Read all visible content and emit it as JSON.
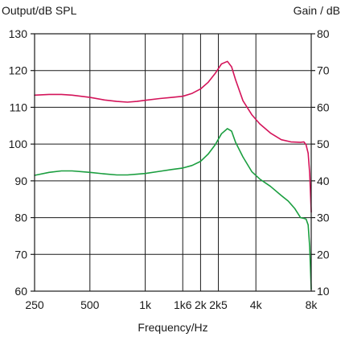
{
  "chart_data": {
    "type": "line",
    "title": "",
    "xlabel": "Frequency/Hz",
    "ylabel_left": "Output/dB SPL",
    "ylabel_right": "Gain / dB",
    "x_scale": "log",
    "xlim": [
      250,
      8000
    ],
    "ylim_left": [
      60,
      130
    ],
    "ylim_right": [
      10,
      80
    ],
    "grid": true,
    "x_ticks": [
      {
        "value": 250,
        "label": "250"
      },
      {
        "value": 500,
        "label": "500"
      },
      {
        "value": 1000,
        "label": "1k"
      },
      {
        "value": 1600,
        "label": "1k6"
      },
      {
        "value": 2000,
        "label": "2k"
      },
      {
        "value": 2500,
        "label": "2k5"
      },
      {
        "value": 4000,
        "label": "4k"
      },
      {
        "value": 8000,
        "label": "8k"
      }
    ],
    "y_ticks_left": [
      "60",
      "70",
      "80",
      "90",
      "100",
      "110",
      "120",
      "130"
    ],
    "y_ticks_right": [
      "10",
      "20",
      "30",
      "40",
      "50",
      "60",
      "70",
      "80"
    ],
    "series": [
      {
        "axis": "left",
        "color": "#d4145a",
        "x": [
          250,
          300,
          350,
          400,
          500,
          600,
          700,
          800,
          900,
          1000,
          1200,
          1400,
          1600,
          1800,
          2000,
          2200,
          2400,
          2600,
          2800,
          2950,
          3100,
          3400,
          3800,
          4200,
          4800,
          5500,
          6200,
          7000,
          7300,
          7500,
          7700,
          7850,
          8000
        ],
        "y": [
          113.3,
          113.5,
          113.5,
          113.3,
          112.7,
          112.0,
          111.6,
          111.4,
          111.6,
          111.9,
          112.4,
          112.7,
          113.0,
          113.8,
          115.0,
          116.8,
          119.2,
          121.8,
          122.5,
          121.0,
          117.5,
          111.8,
          108.0,
          105.5,
          103.0,
          101.2,
          100.6,
          100.5,
          100.6,
          99.8,
          97.5,
          92.0,
          81.5
        ]
      },
      {
        "axis": "right",
        "color": "#1a9e3f",
        "x": [
          250,
          300,
          350,
          400,
          500,
          600,
          700,
          800,
          900,
          1000,
          1200,
          1400,
          1600,
          1800,
          2000,
          2200,
          2400,
          2600,
          2800,
          2950,
          3100,
          3400,
          3800,
          4200,
          4800,
          5500,
          6000,
          6500,
          7000,
          7300,
          7500,
          7700,
          7850,
          8000
        ],
        "y": [
          41.5,
          42.3,
          42.7,
          42.7,
          42.3,
          41.9,
          41.6,
          41.6,
          41.8,
          42.0,
          42.6,
          43.1,
          43.5,
          44.2,
          45.3,
          47.3,
          49.8,
          52.8,
          54.2,
          53.5,
          50.5,
          46.5,
          42.5,
          40.5,
          38.5,
          36.0,
          34.5,
          32.5,
          30.0,
          29.8,
          29.6,
          28.0,
          22.0,
          10.5
        ]
      }
    ]
  }
}
